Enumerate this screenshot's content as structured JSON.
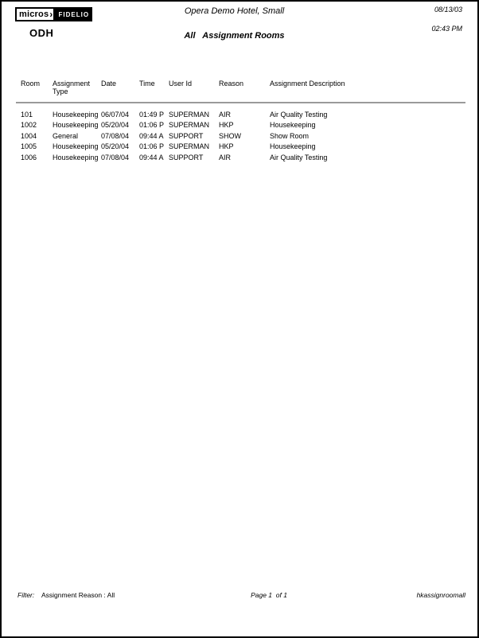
{
  "logo": {
    "micros": "micros",
    "arrow": "›",
    "fidelio": "FIDELIO"
  },
  "property_code": "ODH",
  "header": {
    "hotel_name": "Opera Demo Hotel, Small",
    "report_title": "All   Assignment Rooms",
    "date": "08/13/03",
    "time": "02:43 PM"
  },
  "table": {
    "columns": [
      "Room",
      "Assignment Type",
      "Date",
      "Time",
      "User Id",
      "Reason",
      "Assignment Description"
    ],
    "rows": [
      {
        "room": "101",
        "type": "Housekeeping",
        "date": "06/07/04",
        "time": "01:49 P",
        "user": "SUPERMAN",
        "reason": "AIR",
        "description": "Air Quality Testing"
      },
      {
        "room": "1002",
        "type": "Housekeeping",
        "date": "05/20/04",
        "time": "01:06 P",
        "user": "SUPERMAN",
        "reason": "HKP",
        "description": "Housekeeping"
      },
      {
        "room": "1004",
        "type": "General",
        "date": "07/08/04",
        "time": "09:44 A",
        "user": "SUPPORT",
        "reason": "SHOW",
        "description": "Show Room"
      },
      {
        "room": "1005",
        "type": "Housekeeping",
        "date": "05/20/04",
        "time": "01:06 P",
        "user": "SUPERMAN",
        "reason": "HKP",
        "description": "Housekeeping"
      },
      {
        "room": "1006",
        "type": "Housekeeping",
        "date": "07/08/04",
        "time": "09:44 A",
        "user": "SUPPORT",
        "reason": "AIR",
        "description": "Air Quality Testing"
      }
    ]
  },
  "footer": {
    "filter_label": "Filter:",
    "filter_value": "Assignment Reason : All",
    "page_info": "Page 1  of 1",
    "report_id": "hkassignroomall"
  },
  "colors": {
    "rule_gray": "#9a9a9a",
    "logo_black": "#000000",
    "page_background": "#ffffff"
  }
}
